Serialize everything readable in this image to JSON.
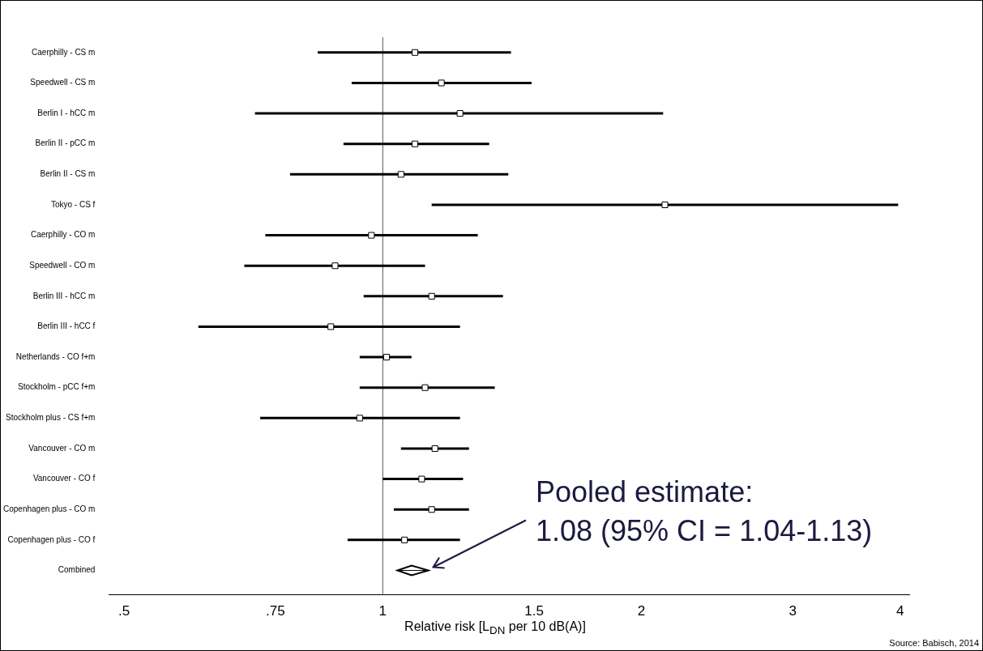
{
  "chart_data": {
    "type": "scatter",
    "orientation": "horizontal",
    "xlabel": "Relative risk  [L$_{DN}$ per 10 dB(A)]",
    "categories": [
      "Caerphilly - CS m",
      "Speedwell - CS m",
      "Berlin I - hCC m",
      "Berlin II - pCC m",
      "Berlin II - CS m",
      "Tokyo - CS f",
      "Caerphilly - CO m",
      "Speedwell - CO m",
      "Berlin III - hCC m",
      "Berlin III - hCC f",
      "Netherlands - CO f+m",
      "Stockholm - pCC f+m",
      "Stockholm plus - CS f+m",
      "Vancouver - CO m",
      "Vancouver - CO f",
      "Copenhagen plus - CO m",
      "Copenhagen plus - CO f",
      "Combined"
    ],
    "series": [
      {
        "color": "#000000",
        "marker": "square",
        "values": [
          1.09,
          1.17,
          1.23,
          1.09,
          1.05,
          2.13,
          0.97,
          0.88,
          1.14,
          0.87,
          1.01,
          1.12,
          0.94,
          1.15,
          1.11,
          1.14,
          1.06,
          null
        ],
        "errors": [
          [
            0.84,
            1.41
          ],
          [
            0.92,
            1.49
          ],
          [
            0.71,
            2.12
          ],
          [
            0.9,
            1.33
          ],
          [
            0.78,
            1.4
          ],
          [
            1.14,
            3.98
          ],
          [
            0.73,
            1.29
          ],
          [
            0.69,
            1.12
          ],
          [
            0.95,
            1.38
          ],
          [
            0.61,
            1.23
          ],
          [
            0.94,
            1.08
          ],
          [
            0.94,
            1.35
          ],
          [
            0.72,
            1.23
          ],
          [
            1.05,
            1.26
          ],
          [
            1.0,
            1.24
          ],
          [
            1.03,
            1.26
          ],
          [
            0.91,
            1.23
          ],
          null
        ]
      },
      {
        "color": "#000000",
        "marker": "diamond",
        "values": [
          null,
          null,
          null,
          null,
          null,
          null,
          null,
          null,
          null,
          null,
          null,
          null,
          null,
          null,
          null,
          null,
          null,
          1.08
        ],
        "errors": [
          null,
          null,
          null,
          null,
          null,
          null,
          null,
          null,
          null,
          null,
          null,
          null,
          null,
          null,
          null,
          null,
          null,
          [
            1.04,
            1.13
          ]
        ]
      }
    ],
    "log": "x",
    "xlim": [
      0.48,
      4.1
    ],
    "xticks": [
      {
        "value": 0.5,
        "label": ".5"
      },
      {
        "value": 0.75,
        "label": ".75"
      },
      1,
      1.5,
      2,
      3,
      4
    ],
    "ref_lines": [
      {
        "axis": "x",
        "value": 1
      }
    ],
    "grid": false,
    "legend": false,
    "annotations": [
      "Pooled estimate:\n1.08 (95% CI = 1.04-1.13)",
      "Source: Babisch, 2014"
    ]
  }
}
